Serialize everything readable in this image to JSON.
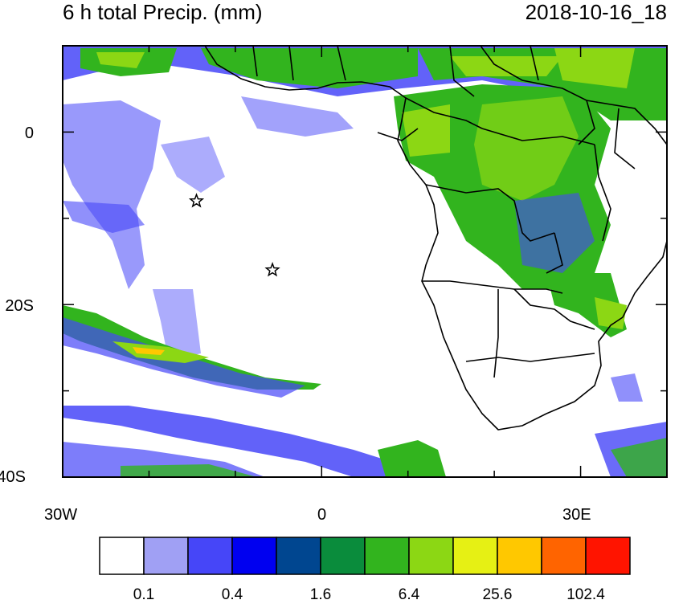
{
  "header": {
    "title": "6 h total Precip. (mm)",
    "date": "2018-10-16_18"
  },
  "axes": {
    "lat_labels": [
      "0",
      "20S",
      "40S"
    ],
    "lon_labels": [
      "30W",
      "0",
      "30E"
    ]
  },
  "colorbar": {
    "colors": [
      "#ffffff",
      "#a0a0f4",
      "#4646f8",
      "#0000f0",
      "#004690",
      "#0a8c3c",
      "#32b41e",
      "#8cd714",
      "#e6f014",
      "#ffc800",
      "#ff6400",
      "#ff1400"
    ],
    "labels": [
      "0.1",
      "0.4",
      "1.6",
      "6.4",
      "25.6",
      "102.4"
    ]
  },
  "markers": [
    {
      "name": "star-marker",
      "lon": -14.5,
      "lat": -8.0
    },
    {
      "name": "star-marker",
      "lon": -5.7,
      "lat": -16.0
    }
  ]
}
